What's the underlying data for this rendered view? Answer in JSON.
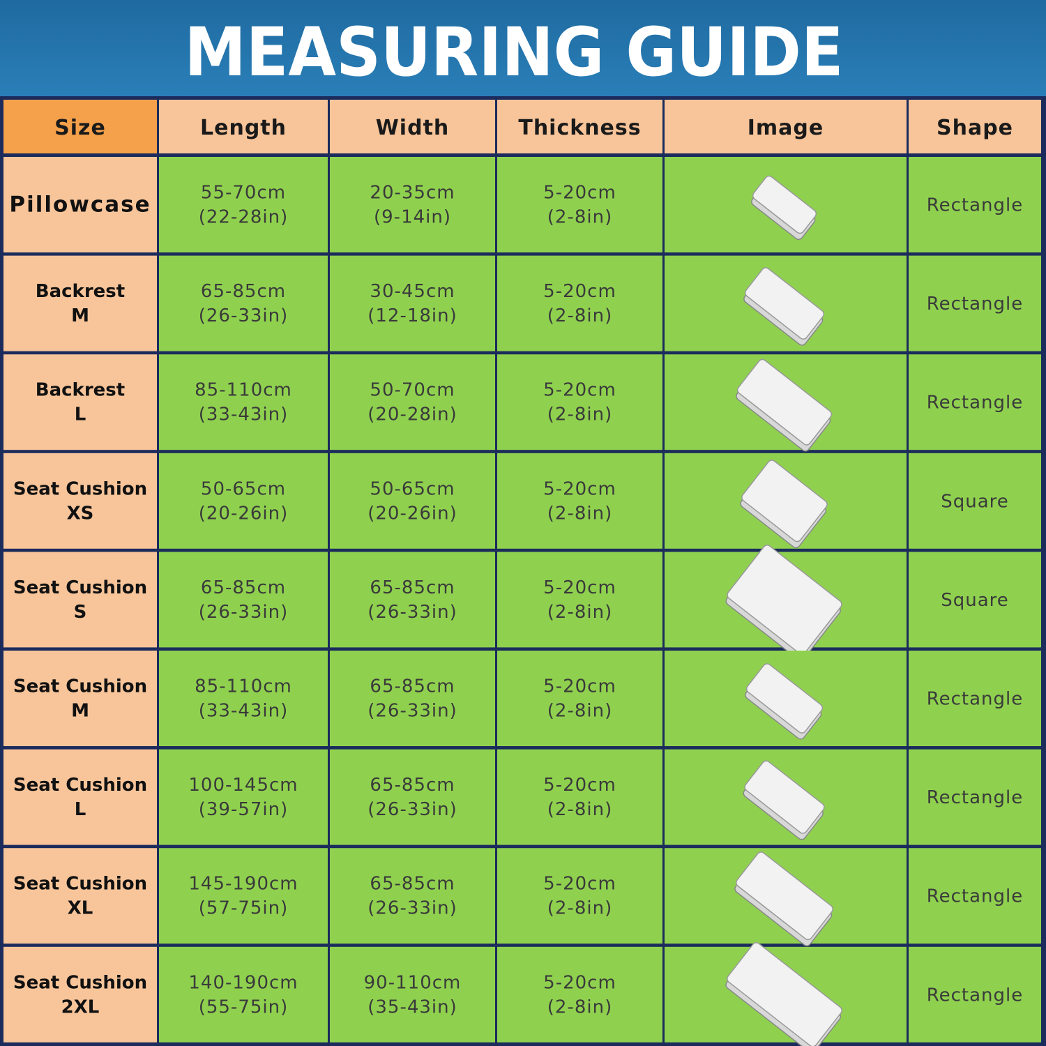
{
  "header": {
    "title": "MEASURING GUIDE"
  },
  "table": {
    "columns": [
      "Size",
      "Length",
      "Width",
      "Thickness",
      "Image",
      "Shape"
    ],
    "rows": [
      {
        "size": [
          "Pillowcase"
        ],
        "length": [
          "55-70cm",
          "(22-28in)"
        ],
        "width": [
          "20-35cm",
          "(9-14in)"
        ],
        "thickness": [
          "5-20cm",
          "(2-8in)"
        ],
        "shape": "Rectangle"
      },
      {
        "size": [
          "Backrest",
          "M"
        ],
        "length": [
          "65-85cm",
          "(26-33in)"
        ],
        "width": [
          "30-45cm",
          "(12-18in)"
        ],
        "thickness": [
          "5-20cm",
          "(2-8in)"
        ],
        "shape": "Rectangle"
      },
      {
        "size": [
          "Backrest",
          "L"
        ],
        "length": [
          "85-110cm",
          "(33-43in)"
        ],
        "width": [
          "50-70cm",
          "(20-28in)"
        ],
        "thickness": [
          "5-20cm",
          "(2-8in)"
        ],
        "shape": "Rectangle"
      },
      {
        "size": [
          "Seat Cushion",
          "XS"
        ],
        "length": [
          "50-65cm",
          "(20-26in)"
        ],
        "width": [
          "50-65cm",
          "(20-26in)"
        ],
        "thickness": [
          "5-20cm",
          "(2-8in)"
        ],
        "shape": "Square"
      },
      {
        "size": [
          "Seat Cushion",
          "S"
        ],
        "length": [
          "65-85cm",
          "(26-33in)"
        ],
        "width": [
          "65-85cm",
          "(26-33in)"
        ],
        "thickness": [
          "5-20cm",
          "(2-8in)"
        ],
        "shape": "Square"
      },
      {
        "size": [
          "Seat Cushion",
          "M"
        ],
        "length": [
          "85-110cm",
          "(33-43in)"
        ],
        "width": [
          "65-85cm",
          "(26-33in)"
        ],
        "thickness": [
          "5-20cm",
          "(2-8in)"
        ],
        "shape": "Rectangle"
      },
      {
        "size": [
          "Seat Cushion",
          "L"
        ],
        "length": [
          "100-145cm",
          "(39-57in)"
        ],
        "width": [
          "65-85cm",
          "(26-33in)"
        ],
        "thickness": [
          "5-20cm",
          "(2-8in)"
        ],
        "shape": "Rectangle"
      },
      {
        "size": [
          "Seat Cushion",
          "XL"
        ],
        "length": [
          "145-190cm",
          "(57-75in)"
        ],
        "width": [
          "65-85cm",
          "(26-33in)"
        ],
        "thickness": [
          "5-20cm",
          "(2-8in)"
        ],
        "shape": "Rectangle"
      },
      {
        "size": [
          "Seat Cushion",
          "2XL"
        ],
        "length": [
          "140-190cm",
          "(55-75in)"
        ],
        "width": [
          "90-110cm",
          "(35-43in)"
        ],
        "thickness": [
          "5-20cm",
          "(2-8in)"
        ],
        "shape": "Rectangle"
      }
    ]
  }
}
